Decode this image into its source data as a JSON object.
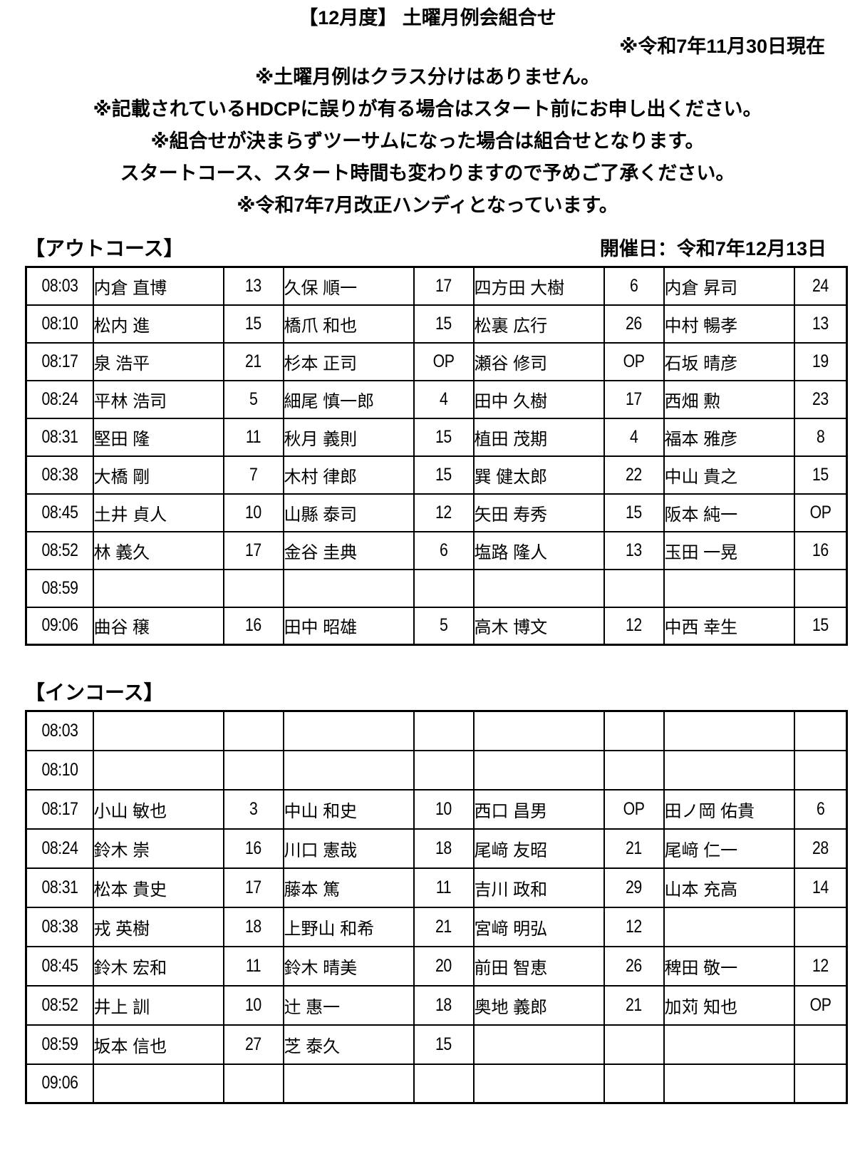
{
  "page": {
    "title": "【12月度】 土曜月例会組合せ",
    "as_of": "※令和7年11月30日現在",
    "notes": [
      "※土曜月例はクラス分けはありません。",
      "※記載されているHDCPに誤りが有る場合はスタート前にお申し出ください。",
      "※組合せが決まらずツーサムになった場合は組合せとなります。",
      "スタートコース、スタート時間も変わりますので予めご了承ください。",
      "※令和7年7月改正ハンディとなっています。"
    ]
  },
  "out_course": {
    "heading": "【アウトコース】",
    "event_date": "開催日：令和7年12月13日",
    "rows": [
      {
        "time": "08:03",
        "players": [
          {
            "name": "内倉 直博",
            "hdcp": "13"
          },
          {
            "name": "久保 順一",
            "hdcp": "17"
          },
          {
            "name": "四方田 大樹",
            "hdcp": "6"
          },
          {
            "name": "内倉 昇司",
            "hdcp": "24"
          }
        ]
      },
      {
        "time": "08:10",
        "players": [
          {
            "name": "松内 進",
            "hdcp": "15"
          },
          {
            "name": "橋爪 和也",
            "hdcp": "15"
          },
          {
            "name": "松裏 広行",
            "hdcp": "26"
          },
          {
            "name": "中村 暢孝",
            "hdcp": "13"
          }
        ]
      },
      {
        "time": "08:17",
        "players": [
          {
            "name": "泉 浩平",
            "hdcp": "21"
          },
          {
            "name": "杉本 正司",
            "hdcp": "OP"
          },
          {
            "name": "瀬谷 修司",
            "hdcp": "OP"
          },
          {
            "name": "石坂 晴彦",
            "hdcp": "19"
          }
        ]
      },
      {
        "time": "08:24",
        "players": [
          {
            "name": "平林 浩司",
            "hdcp": "5"
          },
          {
            "name": "細尾 慎一郎",
            "hdcp": "4"
          },
          {
            "name": "田中 久樹",
            "hdcp": "17"
          },
          {
            "name": "西畑 勲",
            "hdcp": "23"
          }
        ]
      },
      {
        "time": "08:31",
        "players": [
          {
            "name": "堅田 隆",
            "hdcp": "11"
          },
          {
            "name": "秋月 義則",
            "hdcp": "15"
          },
          {
            "name": "植田 茂期",
            "hdcp": "4"
          },
          {
            "name": "福本 雅彦",
            "hdcp": "8"
          }
        ]
      },
      {
        "time": "08:38",
        "players": [
          {
            "name": "大橋 剛",
            "hdcp": "7"
          },
          {
            "name": "木村 律郎",
            "hdcp": "15"
          },
          {
            "name": "巽 健太郎",
            "hdcp": "22"
          },
          {
            "name": "中山 貴之",
            "hdcp": "15"
          }
        ]
      },
      {
        "time": "08:45",
        "players": [
          {
            "name": "土井 貞人",
            "hdcp": "10"
          },
          {
            "name": "山縣 泰司",
            "hdcp": "12"
          },
          {
            "name": "矢田 寿秀",
            "hdcp": "15"
          },
          {
            "name": "阪本 純一",
            "hdcp": "OP"
          }
        ]
      },
      {
        "time": "08:52",
        "players": [
          {
            "name": "林 義久",
            "hdcp": "17"
          },
          {
            "name": "金谷 圭典",
            "hdcp": "6"
          },
          {
            "name": "塩路 隆人",
            "hdcp": "13"
          },
          {
            "name": "玉田 一晃",
            "hdcp": "16"
          }
        ]
      },
      {
        "time": "08:59",
        "players": [
          {
            "name": "",
            "hdcp": ""
          },
          {
            "name": "",
            "hdcp": ""
          },
          {
            "name": "",
            "hdcp": ""
          },
          {
            "name": "",
            "hdcp": ""
          }
        ]
      },
      {
        "time": "09:06",
        "players": [
          {
            "name": "曲谷 穣",
            "hdcp": "16"
          },
          {
            "name": "田中 昭雄",
            "hdcp": "5"
          },
          {
            "name": "高木 博文",
            "hdcp": "12"
          },
          {
            "name": "中西 幸生",
            "hdcp": "15"
          }
        ]
      }
    ]
  },
  "in_course": {
    "heading": "【インコース】",
    "rows": [
      {
        "time": "08:03",
        "players": [
          {
            "name": "",
            "hdcp": ""
          },
          {
            "name": "",
            "hdcp": ""
          },
          {
            "name": "",
            "hdcp": ""
          },
          {
            "name": "",
            "hdcp": ""
          }
        ]
      },
      {
        "time": "08:10",
        "players": [
          {
            "name": "",
            "hdcp": ""
          },
          {
            "name": "",
            "hdcp": ""
          },
          {
            "name": "",
            "hdcp": ""
          },
          {
            "name": "",
            "hdcp": ""
          }
        ]
      },
      {
        "time": "08:17",
        "players": [
          {
            "name": "小山 敏也",
            "hdcp": "3"
          },
          {
            "name": "中山 和史",
            "hdcp": "10"
          },
          {
            "name": "西口 昌男",
            "hdcp": "OP"
          },
          {
            "name": "田ノ岡 佑貴",
            "hdcp": "6"
          }
        ]
      },
      {
        "time": "08:24",
        "players": [
          {
            "name": "鈴木 崇",
            "hdcp": "16"
          },
          {
            "name": "川口 憲哉",
            "hdcp": "18"
          },
          {
            "name": "尾﨑 友昭",
            "hdcp": "21"
          },
          {
            "name": "尾﨑 仁一",
            "hdcp": "28"
          }
        ]
      },
      {
        "time": "08:31",
        "players": [
          {
            "name": "松本 貴史",
            "hdcp": "17"
          },
          {
            "name": "藤本 篤",
            "hdcp": "11"
          },
          {
            "name": "吉川 政和",
            "hdcp": "29"
          },
          {
            "name": "山本 充高",
            "hdcp": "14"
          }
        ]
      },
      {
        "time": "08:38",
        "players": [
          {
            "name": "戎 英樹",
            "hdcp": "18"
          },
          {
            "name": "上野山 和希",
            "hdcp": "21"
          },
          {
            "name": "宮﨑 明弘",
            "hdcp": "12"
          },
          {
            "name": "",
            "hdcp": ""
          }
        ]
      },
      {
        "time": "08:45",
        "players": [
          {
            "name": "鈴木 宏和",
            "hdcp": "11"
          },
          {
            "name": "鈴木 晴美",
            "hdcp": "20"
          },
          {
            "name": "前田 智恵",
            "hdcp": "26"
          },
          {
            "name": "稗田 敬一",
            "hdcp": "12"
          }
        ]
      },
      {
        "time": "08:52",
        "players": [
          {
            "name": "井上 訓",
            "hdcp": "10"
          },
          {
            "name": "辻 惠一",
            "hdcp": "18"
          },
          {
            "name": "奥地 義郎",
            "hdcp": "21"
          },
          {
            "name": "加苅 知也",
            "hdcp": "OP"
          }
        ]
      },
      {
        "time": "08:59",
        "players": [
          {
            "name": "坂本 信也",
            "hdcp": "27"
          },
          {
            "name": "芝 泰久",
            "hdcp": "15"
          },
          {
            "name": "",
            "hdcp": ""
          },
          {
            "name": "",
            "hdcp": ""
          }
        ]
      },
      {
        "time": "09:06",
        "players": [
          {
            "name": "",
            "hdcp": ""
          },
          {
            "name": "",
            "hdcp": ""
          },
          {
            "name": "",
            "hdcp": ""
          },
          {
            "name": "",
            "hdcp": ""
          }
        ]
      }
    ]
  }
}
